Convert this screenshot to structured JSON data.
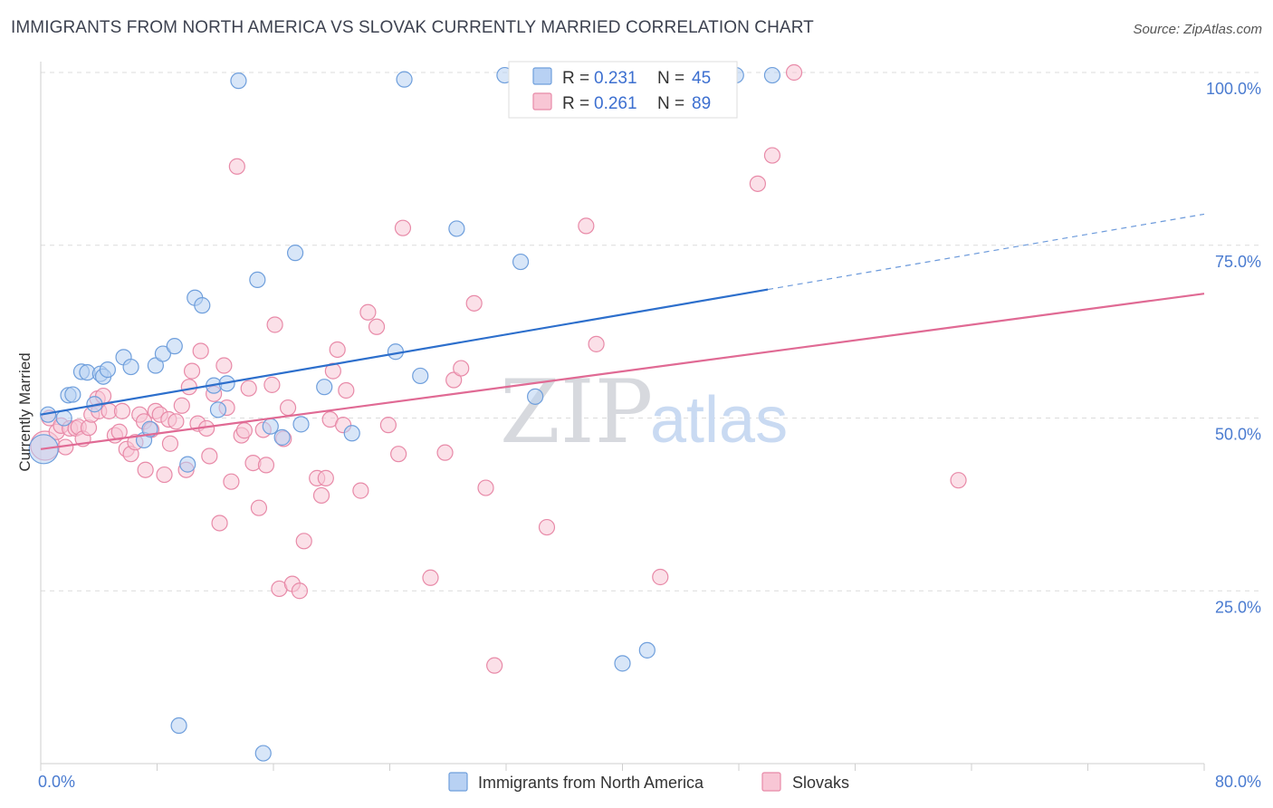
{
  "title": "IMMIGRANTS FROM NORTH AMERICA VS SLOVAK CURRENTLY MARRIED CORRELATION CHART",
  "source": "Source: ZipAtlas.com",
  "watermark": {
    "zip": "ZIP",
    "atlas": "atlas"
  },
  "colors": {
    "blue_fill": "#b8d1f3",
    "blue_stroke": "#6f9fdc",
    "blue_line": "#2d6fcc",
    "pink_fill": "#f8c6d5",
    "pink_stroke": "#e88aa8",
    "pink_line": "#e06a94",
    "grid": "#dcdcdc",
    "tick_text": "#4a7bd0"
  },
  "legend": {
    "rows": [
      {
        "r_label": "R = ",
        "r_value": "0.231",
        "n_label": "N = ",
        "n_value": "45",
        "series": "blue"
      },
      {
        "r_label": "R = ",
        "r_value": "0.261",
        "n_label": "N = ",
        "n_value": "89",
        "series": "pink"
      }
    ]
  },
  "chart_data": {
    "type": "scatter",
    "title": "IMMIGRANTS FROM NORTH AMERICA VS SLOVAK CURRENTLY MARRIED CORRELATION CHART",
    "ylabel": "Currently Married",
    "xlabel": "",
    "xlim": [
      0,
      80
    ],
    "ylim": [
      0,
      100
    ],
    "x_ticks": [
      0,
      8,
      16,
      24,
      32,
      40,
      48,
      56,
      64,
      72,
      80
    ],
    "x_tick_labels": [
      {
        "value": 0,
        "label": "0.0%"
      },
      {
        "value": 80,
        "label": "80.0%"
      }
    ],
    "y_ticks": [
      {
        "value": 25,
        "label": "25.0%"
      },
      {
        "value": 50,
        "label": "50.0%"
      },
      {
        "value": 75,
        "label": "75.0%"
      },
      {
        "value": 100,
        "label": "100.0%"
      }
    ],
    "grid": "horizontal dashed",
    "legend_placement": "top-center",
    "series": [
      {
        "name": "Immigrants from North America",
        "color": "blue",
        "trend": {
          "x0": 0,
          "y0": 50.5,
          "x1": 50,
          "y1": 68.6,
          "dashed_to_x": 80,
          "dashed_to_y": 79.5
        },
        "points": [
          [
            0.2,
            45.5
          ],
          [
            0.5,
            50.5
          ],
          [
            1.6,
            50.0
          ],
          [
            1.9,
            53.3
          ],
          [
            2.2,
            53.4
          ],
          [
            2.8,
            56.7
          ],
          [
            3.2,
            56.6
          ],
          [
            3.7,
            52.0
          ],
          [
            4.1,
            56.4
          ],
          [
            4.3,
            56.0
          ],
          [
            4.6,
            57.0
          ],
          [
            5.7,
            58.8
          ],
          [
            6.2,
            57.4
          ],
          [
            7.1,
            46.8
          ],
          [
            7.5,
            48.4
          ],
          [
            7.9,
            57.6
          ],
          [
            8.4,
            59.3
          ],
          [
            9.2,
            60.4
          ],
          [
            9.5,
            5.5
          ],
          [
            10.1,
            43.3
          ],
          [
            10.6,
            67.4
          ],
          [
            11.1,
            66.3
          ],
          [
            11.9,
            54.7
          ],
          [
            12.2,
            51.2
          ],
          [
            12.8,
            55.0
          ],
          [
            13.6,
            98.8
          ],
          [
            14.9,
            70.0
          ],
          [
            15.3,
            1.5
          ],
          [
            15.8,
            48.8
          ],
          [
            16.6,
            47.2
          ],
          [
            17.5,
            73.9
          ],
          [
            17.9,
            49.1
          ],
          [
            19.5,
            54.5
          ],
          [
            21.4,
            47.8
          ],
          [
            24.4,
            59.6
          ],
          [
            26.1,
            56.1
          ],
          [
            28.6,
            77.4
          ],
          [
            31.9,
            99.6
          ],
          [
            33.0,
            72.6
          ],
          [
            34.0,
            53.1
          ],
          [
            40.0,
            14.5
          ],
          [
            41.7,
            16.4
          ],
          [
            47.8,
            99.6
          ],
          [
            50.3,
            99.6
          ],
          [
            25.0,
            99.0
          ]
        ]
      },
      {
        "name": "Slovaks",
        "color": "pink",
        "trend": {
          "x0": 0,
          "y0": 45.5,
          "x1": 80,
          "y1": 68.0
        },
        "points": [
          [
            0.3,
            46.0
          ],
          [
            0.6,
            50.0
          ],
          [
            1.1,
            48.0
          ],
          [
            1.4,
            48.9
          ],
          [
            1.7,
            45.8
          ],
          [
            2.0,
            48.5
          ],
          [
            2.4,
            48.5
          ],
          [
            2.6,
            48.7
          ],
          [
            2.9,
            47.0
          ],
          [
            3.3,
            48.6
          ],
          [
            3.5,
            50.5
          ],
          [
            3.9,
            52.8
          ],
          [
            4.0,
            51.0
          ],
          [
            4.3,
            53.2
          ],
          [
            4.7,
            51.0
          ],
          [
            5.1,
            47.5
          ],
          [
            5.4,
            48.0
          ],
          [
            5.6,
            51.0
          ],
          [
            5.9,
            45.5
          ],
          [
            6.2,
            44.8
          ],
          [
            6.5,
            46.5
          ],
          [
            6.8,
            50.5
          ],
          [
            7.1,
            49.5
          ],
          [
            7.2,
            42.5
          ],
          [
            7.6,
            48.3
          ],
          [
            7.9,
            51.0
          ],
          [
            8.2,
            50.5
          ],
          [
            8.5,
            41.8
          ],
          [
            8.8,
            49.8
          ],
          [
            8.9,
            46.3
          ],
          [
            9.3,
            49.5
          ],
          [
            9.7,
            51.8
          ],
          [
            10.0,
            42.5
          ],
          [
            10.2,
            54.5
          ],
          [
            10.4,
            56.8
          ],
          [
            10.8,
            49.2
          ],
          [
            11.0,
            59.7
          ],
          [
            11.4,
            48.5
          ],
          [
            11.6,
            44.5
          ],
          [
            11.9,
            53.5
          ],
          [
            12.3,
            34.8
          ],
          [
            12.6,
            57.6
          ],
          [
            12.8,
            51.5
          ],
          [
            13.1,
            40.8
          ],
          [
            13.5,
            86.4
          ],
          [
            13.8,
            47.5
          ],
          [
            14.0,
            48.2
          ],
          [
            14.3,
            54.3
          ],
          [
            14.6,
            43.5
          ],
          [
            15.0,
            37.0
          ],
          [
            15.3,
            48.3
          ],
          [
            15.5,
            43.2
          ],
          [
            15.9,
            54.8
          ],
          [
            16.1,
            63.5
          ],
          [
            16.4,
            25.3
          ],
          [
            16.7,
            47.0
          ],
          [
            17.0,
            51.5
          ],
          [
            17.3,
            26.0
          ],
          [
            17.8,
            25.0
          ],
          [
            18.1,
            32.2
          ],
          [
            19.0,
            41.3
          ],
          [
            19.3,
            38.8
          ],
          [
            19.6,
            41.3
          ],
          [
            19.9,
            49.8
          ],
          [
            20.1,
            56.8
          ],
          [
            20.4,
            59.9
          ],
          [
            20.8,
            49.0
          ],
          [
            21.0,
            54.0
          ],
          [
            22.0,
            39.5
          ],
          [
            22.5,
            65.3
          ],
          [
            23.1,
            63.2
          ],
          [
            23.9,
            49.0
          ],
          [
            24.6,
            44.8
          ],
          [
            24.9,
            77.5
          ],
          [
            26.8,
            26.9
          ],
          [
            27.8,
            45.0
          ],
          [
            28.4,
            55.5
          ],
          [
            28.9,
            57.2
          ],
          [
            29.8,
            66.6
          ],
          [
            30.6,
            39.9
          ],
          [
            31.2,
            14.2
          ],
          [
            34.8,
            34.2
          ],
          [
            37.5,
            77.8
          ],
          [
            38.2,
            60.7
          ],
          [
            42.6,
            27.0
          ],
          [
            49.3,
            83.9
          ],
          [
            50.3,
            88.0
          ],
          [
            51.8,
            100.0
          ],
          [
            63.1,
            41.0
          ]
        ]
      }
    ]
  },
  "bottom_legend": [
    {
      "label": "Immigrants from North America",
      "series": "blue"
    },
    {
      "label": "Slovaks",
      "series": "pink"
    }
  ]
}
